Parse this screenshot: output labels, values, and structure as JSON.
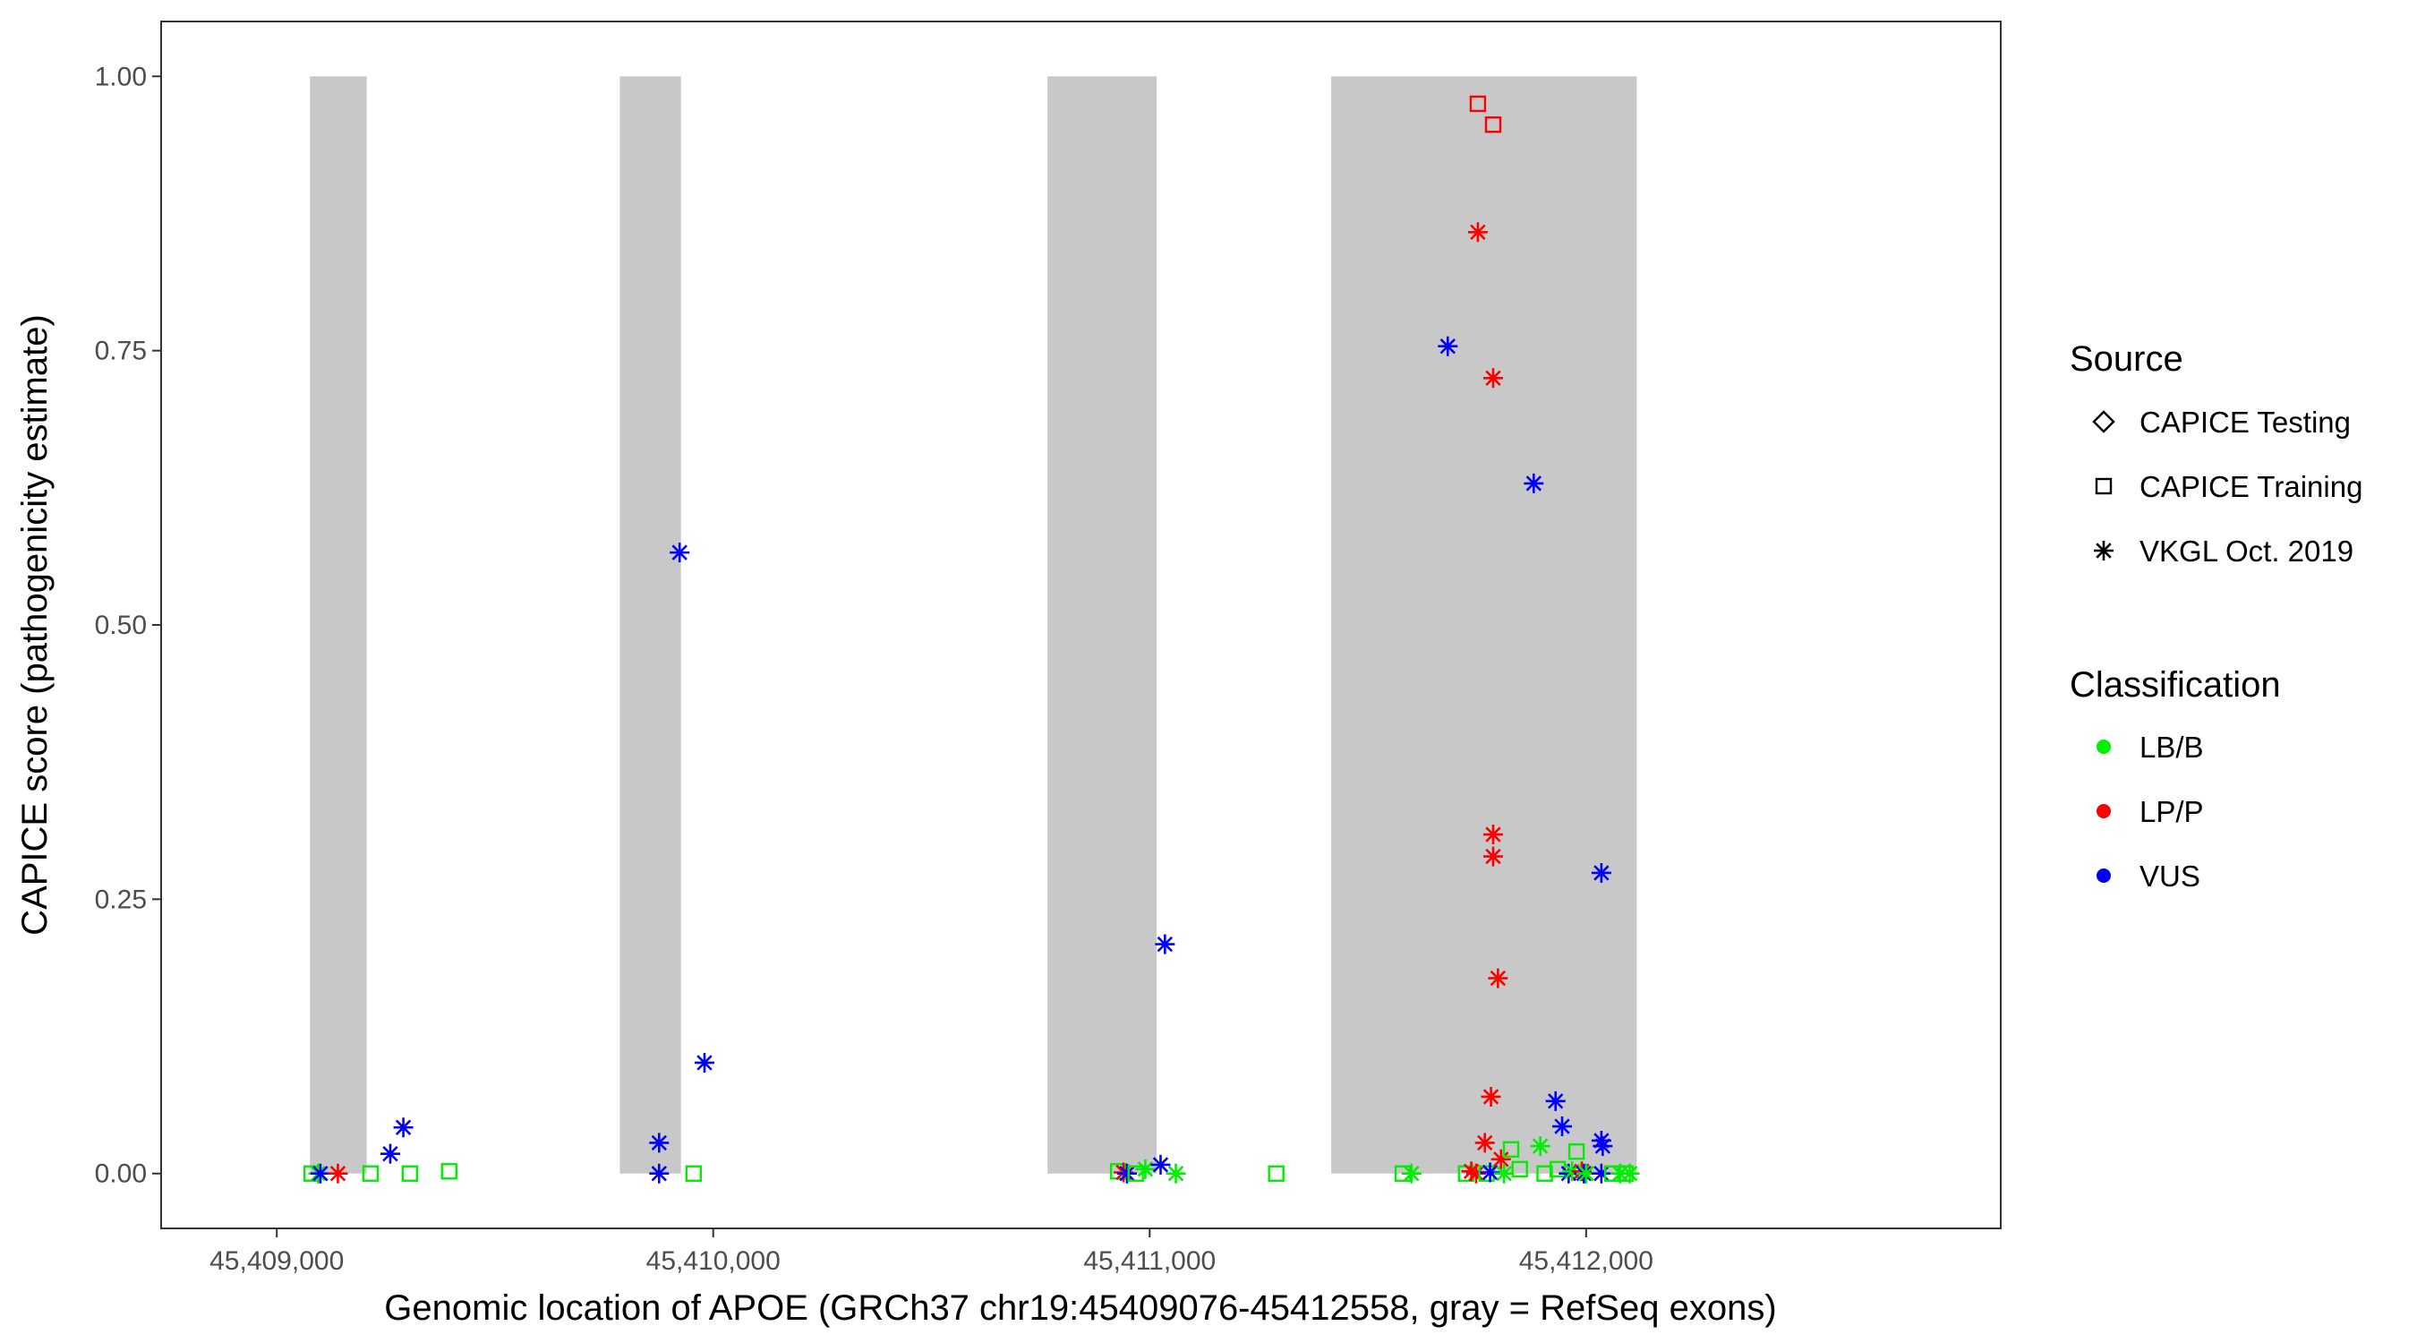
{
  "chart_data": {
    "type": "scatter",
    "title": "",
    "xlabel": "Genomic location of APOE (GRCh37 chr19:45409076-45412558, gray = RefSeq exons)",
    "ylabel": "CAPICE score (pathogenicity estimate)",
    "xlim": [
      45408735,
      45412950
    ],
    "ylim": [
      -0.05,
      1.05
    ],
    "x_ticks": [
      45409000,
      45410000,
      45411000,
      45412000
    ],
    "x_tick_labels": [
      "45,409,000",
      "45,410,000",
      "45,411,000",
      "45,412,000"
    ],
    "y_ticks": [
      0,
      0.25,
      0.5,
      0.75,
      1.0
    ],
    "y_tick_labels": [
      "0.00",
      "0.25",
      "0.50",
      "0.75",
      "1.00"
    ],
    "grid": false,
    "legend_position": "right",
    "exons": [
      {
        "start": 45409076,
        "end": 45409206
      },
      {
        "start": 45409786,
        "end": 45409926
      },
      {
        "start": 45410766,
        "end": 45411016
      },
      {
        "start": 45411416,
        "end": 45412116
      }
    ],
    "colors": {
      "LB/B": "#00ee00",
      "LP/P": "#ff0000",
      "VUS": "#0000ff",
      "exon": "#c8c8c8"
    },
    "legend": {
      "source_title": "Source",
      "source": [
        {
          "label": "CAPICE Testing",
          "shape": "diamond"
        },
        {
          "label": "CAPICE Training",
          "shape": "square"
        },
        {
          "label": "VKGL Oct. 2019",
          "shape": "asterisk"
        }
      ],
      "classification_title": "Classification",
      "classification": [
        {
          "label": "LB/B",
          "color": "#00ee00"
        },
        {
          "label": "LP/P",
          "color": "#ff0000"
        },
        {
          "label": "VUS",
          "color": "#0000ff"
        }
      ]
    },
    "points": [
      {
        "x": 45409080,
        "y": 0.0,
        "class": "LB/B",
        "source": "CAPICE Training"
      },
      {
        "x": 45409095,
        "y": 0.0,
        "class": "LB/B",
        "source": "VKGL Oct. 2019"
      },
      {
        "x": 45409100,
        "y": 0.0,
        "class": "VUS",
        "source": "VKGL Oct. 2019"
      },
      {
        "x": 45409140,
        "y": 0.0,
        "class": "LP/P",
        "source": "VKGL Oct. 2019"
      },
      {
        "x": 45409215,
        "y": 0.0,
        "class": "LB/B",
        "source": "CAPICE Training"
      },
      {
        "x": 45409260,
        "y": 0.018,
        "class": "VUS",
        "source": "VKGL Oct. 2019"
      },
      {
        "x": 45409290,
        "y": 0.042,
        "class": "VUS",
        "source": "VKGL Oct. 2019"
      },
      {
        "x": 45409305,
        "y": 0.0,
        "class": "LB/B",
        "source": "CAPICE Training"
      },
      {
        "x": 45409395,
        "y": 0.002,
        "class": "LB/B",
        "source": "CAPICE Training"
      },
      {
        "x": 45409876,
        "y": 0.028,
        "class": "VUS",
        "source": "VKGL Oct. 2019"
      },
      {
        "x": 45409876,
        "y": 0.0,
        "class": "VUS",
        "source": "VKGL Oct. 2019"
      },
      {
        "x": 45409923,
        "y": 0.566,
        "class": "VUS",
        "source": "VKGL Oct. 2019"
      },
      {
        "x": 45409955,
        "y": 0.0,
        "class": "LB/B",
        "source": "CAPICE Training"
      },
      {
        "x": 45409980,
        "y": 0.101,
        "class": "VUS",
        "source": "VKGL Oct. 2019"
      },
      {
        "x": 45410928,
        "y": 0.002,
        "class": "LB/B",
        "source": "CAPICE Training"
      },
      {
        "x": 45410940,
        "y": 0.001,
        "class": "LP/P",
        "source": "VKGL Oct. 2019"
      },
      {
        "x": 45410948,
        "y": 0.0,
        "class": "VUS",
        "source": "VKGL Oct. 2019"
      },
      {
        "x": 45410968,
        "y": 0.0,
        "class": "LB/B",
        "source": "CAPICE Training"
      },
      {
        "x": 45410990,
        "y": 0.004,
        "class": "LB/B",
        "source": "VKGL Oct. 2019"
      },
      {
        "x": 45411025,
        "y": 0.008,
        "class": "VUS",
        "source": "VKGL Oct. 2019"
      },
      {
        "x": 45411035,
        "y": 0.209,
        "class": "VUS",
        "source": "VKGL Oct. 2019"
      },
      {
        "x": 45411060,
        "y": 0.0,
        "class": "LB/B",
        "source": "VKGL Oct. 2019"
      },
      {
        "x": 45411290,
        "y": 0.0,
        "class": "LB/B",
        "source": "CAPICE Training"
      },
      {
        "x": 45411580,
        "y": 0.0,
        "class": "LB/B",
        "source": "CAPICE Training"
      },
      {
        "x": 45411600,
        "y": 0.0,
        "class": "LB/B",
        "source": "VKGL Oct. 2019"
      },
      {
        "x": 45411683,
        "y": 0.754,
        "class": "VUS",
        "source": "VKGL Oct. 2019"
      },
      {
        "x": 45411725,
        "y": 0.0,
        "class": "LB/B",
        "source": "CAPICE Training"
      },
      {
        "x": 45411737,
        "y": 0.002,
        "class": "LP/P",
        "source": "VKGL Oct. 2019"
      },
      {
        "x": 45411748,
        "y": 0.0,
        "class": "LP/P",
        "source": "VKGL Oct. 2019"
      },
      {
        "x": 45411752,
        "y": 0.975,
        "class": "LP/P",
        "source": "CAPICE Training"
      },
      {
        "x": 45411752,
        "y": 0.858,
        "class": "LP/P",
        "source": "VKGL Oct. 2019"
      },
      {
        "x": 45411768,
        "y": 0.028,
        "class": "LP/P",
        "source": "VKGL Oct. 2019"
      },
      {
        "x": 45411772,
        "y": 0.0,
        "class": "LB/B",
        "source": "CAPICE Training"
      },
      {
        "x": 45411780,
        "y": 0.001,
        "class": "VUS",
        "source": "VKGL Oct. 2019"
      },
      {
        "x": 45411782,
        "y": 0.07,
        "class": "LP/P",
        "source": "VKGL Oct. 2019"
      },
      {
        "x": 45411787,
        "y": 0.956,
        "class": "LP/P",
        "source": "CAPICE Training"
      },
      {
        "x": 45411787,
        "y": 0.725,
        "class": "LP/P",
        "source": "VKGL Oct. 2019"
      },
      {
        "x": 45411787,
        "y": 0.309,
        "class": "LP/P",
        "source": "VKGL Oct. 2019"
      },
      {
        "x": 45411787,
        "y": 0.289,
        "class": "LP/P",
        "source": "VKGL Oct. 2019"
      },
      {
        "x": 45411798,
        "y": 0.178,
        "class": "LP/P",
        "source": "VKGL Oct. 2019"
      },
      {
        "x": 45411805,
        "y": 0.013,
        "class": "LP/P",
        "source": "VKGL Oct. 2019"
      },
      {
        "x": 45411812,
        "y": 0.0,
        "class": "LB/B",
        "source": "VKGL Oct. 2019"
      },
      {
        "x": 45411828,
        "y": 0.022,
        "class": "LB/B",
        "source": "CAPICE Training"
      },
      {
        "x": 45411848,
        "y": 0.004,
        "class": "LB/B",
        "source": "CAPICE Training"
      },
      {
        "x": 45411880,
        "y": 0.629,
        "class": "VUS",
        "source": "VKGL Oct. 2019"
      },
      {
        "x": 45411895,
        "y": 0.025,
        "class": "LB/B",
        "source": "VKGL Oct. 2019"
      },
      {
        "x": 45411905,
        "y": 0.0,
        "class": "LB/B",
        "source": "CAPICE Training"
      },
      {
        "x": 45411930,
        "y": 0.066,
        "class": "VUS",
        "source": "VKGL Oct. 2019"
      },
      {
        "x": 45411935,
        "y": 0.004,
        "class": "LB/B",
        "source": "CAPICE Training"
      },
      {
        "x": 45411945,
        "y": 0.043,
        "class": "VUS",
        "source": "VKGL Oct. 2019"
      },
      {
        "x": 45411960,
        "y": 0.0,
        "class": "VUS",
        "source": "VKGL Oct. 2019"
      },
      {
        "x": 45411968,
        "y": 0.002,
        "class": "LB/B",
        "source": "VKGL Oct. 2019"
      },
      {
        "x": 45411978,
        "y": 0.02,
        "class": "LB/B",
        "source": "CAPICE Training"
      },
      {
        "x": 45411990,
        "y": 0.002,
        "class": "LP/P",
        "source": "VKGL Oct. 2019"
      },
      {
        "x": 45411995,
        "y": 0.0,
        "class": "VUS",
        "source": "VKGL Oct. 2019"
      },
      {
        "x": 45412000,
        "y": 0.0,
        "class": "LB/B",
        "source": "VKGL Oct. 2019"
      },
      {
        "x": 45412035,
        "y": 0.274,
        "class": "VUS",
        "source": "VKGL Oct. 2019"
      },
      {
        "x": 45412035,
        "y": 0.03,
        "class": "VUS",
        "source": "VKGL Oct. 2019"
      },
      {
        "x": 45412038,
        "y": 0.025,
        "class": "VUS",
        "source": "VKGL Oct. 2019"
      },
      {
        "x": 45412035,
        "y": 0.0,
        "class": "VUS",
        "source": "VKGL Oct. 2019"
      },
      {
        "x": 45412060,
        "y": 0.0,
        "class": "LB/B",
        "source": "CAPICE Training"
      },
      {
        "x": 45412078,
        "y": 0.0,
        "class": "LB/B",
        "source": "VKGL Oct. 2019"
      },
      {
        "x": 45412090,
        "y": 0.0,
        "class": "LB/B",
        "source": "CAPICE Training"
      },
      {
        "x": 45412100,
        "y": 0.0,
        "class": "LB/B",
        "source": "VKGL Oct. 2019"
      }
    ]
  }
}
